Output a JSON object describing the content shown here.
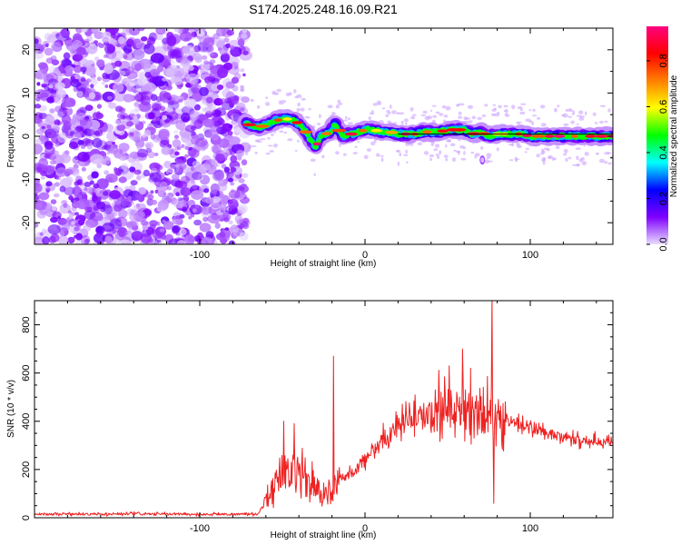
{
  "figure_title": "S174.2025.248.16.09.R21",
  "chart_data": [
    {
      "type": "heatmap",
      "title": "S174.2025.248.16.09.R21",
      "xlabel": "Height of straight line (km)",
      "ylabel": "Frequency (Hz)",
      "xlim": [
        -200,
        150
      ],
      "ylim": [
        -25,
        25
      ],
      "x_ticks": [
        -100,
        0,
        100
      ],
      "y_ticks": [
        -20,
        -10,
        0,
        10,
        20
      ],
      "colorbar": {
        "label": "Normalized spectral amplitude",
        "range": [
          0.0,
          0.95
        ],
        "ticks": [
          0.0,
          0.2,
          0.4,
          0.6,
          0.8
        ],
        "colors": [
          "#e8dcff",
          "#7f00ff",
          "#0000ff",
          "#00ffff",
          "#00ff00",
          "#ffff00",
          "#ff8000",
          "#ff0000",
          "#ff0080"
        ]
      },
      "noise_region": {
        "x_range": [
          -200,
          -72
        ],
        "y_range": [
          -25,
          25
        ],
        "amplitude_range": [
          0.0,
          0.15
        ]
      },
      "signal_ridge": {
        "x": [
          -72,
          -66,
          -60,
          -55,
          -50,
          -46,
          -42,
          -38,
          -35,
          -32,
          -30,
          -27,
          -24,
          -21,
          -18,
          -16,
          -13,
          -10,
          -7,
          -4,
          0,
          5,
          10,
          15,
          20,
          25,
          30,
          35,
          40,
          45,
          50,
          55,
          60,
          65,
          70,
          75,
          80,
          85,
          90,
          95,
          100,
          110,
          120,
          130,
          140,
          150
        ],
        "frequency": [
          3,
          2,
          2.5,
          3.5,
          4,
          4,
          3.5,
          2,
          0.5,
          -1.5,
          -2.5,
          0,
          0.5,
          1,
          3,
          1.5,
          0,
          0.5,
          0.5,
          1,
          1.5,
          1.5,
          1,
          1,
          0.5,
          0.5,
          0.5,
          1,
          1,
          1,
          1.5,
          1.5,
          1.5,
          0.5,
          1,
          0,
          0.5,
          0.5,
          0.5,
          0.5,
          0,
          0,
          0,
          0,
          0,
          0
        ]
      },
      "reference_line_frequency": 0.5
    },
    {
      "type": "line",
      "xlabel": "Height of straight line (km)",
      "ylabel": "SNR (10 * v/v)",
      "xlim": [
        -200,
        150
      ],
      "ylim": [
        0,
        900
      ],
      "x_ticks": [
        -100,
        0,
        100
      ],
      "y_ticks": [
        0,
        200,
        400,
        600,
        800
      ],
      "series": [
        {
          "name": "SNR",
          "color": "#ee2222",
          "x": [
            -200,
            -180,
            -160,
            -140,
            -120,
            -100,
            -80,
            -65,
            -60,
            -55,
            -50,
            -45,
            -40,
            -35,
            -30,
            -25,
            -20,
            -18,
            -15,
            -10,
            -5,
            0,
            10,
            20,
            30,
            40,
            50,
            60,
            70,
            80,
            90,
            100,
            110,
            120,
            130,
            140,
            150
          ],
          "values": [
            15,
            15,
            14,
            16,
            15,
            14,
            15,
            15,
            70,
            140,
            190,
            200,
            180,
            160,
            130,
            100,
            85,
            130,
            160,
            180,
            200,
            250,
            320,
            380,
            420,
            440,
            450,
            450,
            430,
            420,
            400,
            370,
            350,
            330,
            320,
            320,
            310
          ],
          "spikes": [
            {
              "x": -49,
              "value": 400
            },
            {
              "x": -43,
              "value": 390
            },
            {
              "x": -19,
              "value": 670
            },
            {
              "x": 51,
              "value": 630
            },
            {
              "x": 59,
              "value": 700
            },
            {
              "x": 64,
              "value": 620
            },
            {
              "x": 77,
              "value": 920
            },
            {
              "x": 78,
              "value": 60
            }
          ]
        }
      ]
    }
  ]
}
